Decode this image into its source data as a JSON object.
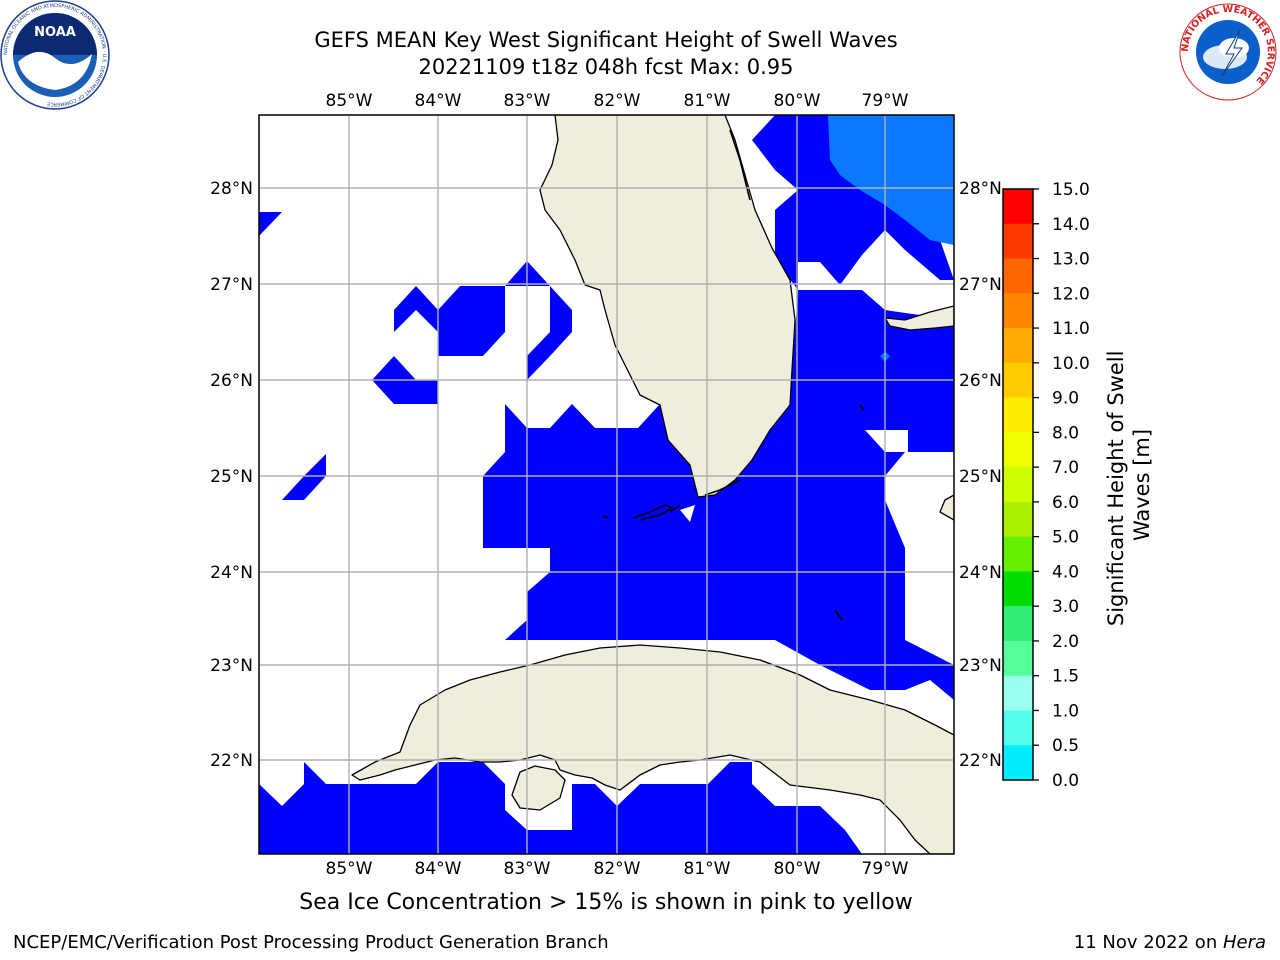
{
  "title": {
    "line1": "GEFS MEAN Key West Significant Height of Swell Waves",
    "line2": "20221109 t18z 048h fcst   Max: 0.95"
  },
  "map": {
    "lon_labels": [
      "85°W",
      "84°W",
      "83°W",
      "82°W",
      "81°W",
      "80°W",
      "79°W"
    ],
    "lat_labels": [
      "28°N",
      "27°N",
      "26°N",
      "25°N",
      "24°N",
      "23°N",
      "22°N"
    ],
    "colors": {
      "land": "#efeedd",
      "swell_0_0p5": "#0000ff",
      "swell_0p5_1": "#0a78ff",
      "grid": "#b0b0b0"
    }
  },
  "colorbar": {
    "label_line1": "Significant Height of Swell",
    "label_line2": "Waves [m]",
    "ticks": [
      "15.0",
      "14.0",
      "13.0",
      "12.0",
      "11.0",
      "10.0",
      "9.0",
      "8.0",
      "7.0",
      "6.0",
      "5.0",
      "4.0",
      "3.0",
      "2.0",
      "1.5",
      "1.0",
      "0.5",
      "0.0"
    ],
    "colors": [
      "#ff0000",
      "#ff3a00",
      "#ff6600",
      "#ff8800",
      "#ffaa00",
      "#ffcc00",
      "#ffee00",
      "#f0ff00",
      "#ccff00",
      "#aaee00",
      "#66ee00",
      "#00dd00",
      "#33ee77",
      "#55ff99",
      "#99ffee",
      "#55ffee",
      "#00eeff",
      "#0a78ff",
      "#0000ff"
    ]
  },
  "logos": {
    "noaa": {
      "text": "NOAA",
      "ring_text": "NATIONAL OCEANIC AND ATMOSPHERIC ADMINISTRATION · U.S. DEPARTMENT OF COMMERCE"
    },
    "nws": {
      "ring_text": "NATIONAL WEATHER SERVICE"
    }
  },
  "note": "Sea Ice Concentration > 15% is shown in pink to yellow",
  "footer": {
    "left": "NCEP/EMC/Verification Post Processing Product Generation Branch",
    "date": "11 Nov 2022 on ",
    "host": "Hera"
  }
}
